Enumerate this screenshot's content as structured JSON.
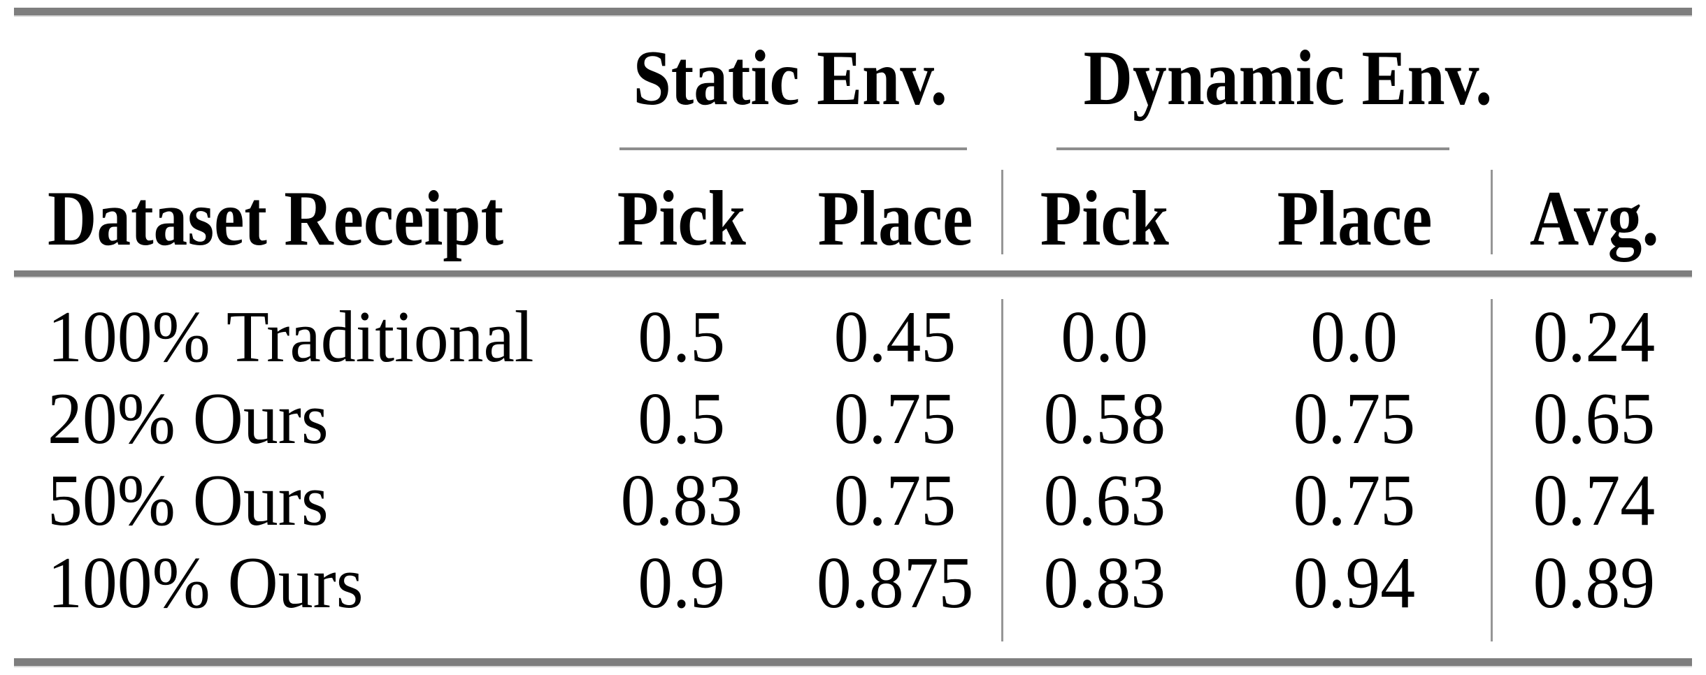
{
  "table": {
    "col_groups": [
      {
        "label": "Static Env."
      },
      {
        "label": "Dynamic Env."
      }
    ],
    "headers": {
      "dataset": "Dataset Receipt",
      "static_pick": "Pick",
      "static_place": "Place",
      "dynamic_pick": "Pick",
      "dynamic_place": "Place",
      "avg": "Avg."
    },
    "rows": [
      {
        "label": "100% Traditional",
        "static_pick": "0.5",
        "static_place": "0.45",
        "dynamic_pick": "0.0",
        "dynamic_place": "0.0",
        "avg": "0.24"
      },
      {
        "label": "20% Ours",
        "static_pick": "0.5",
        "static_place": "0.75",
        "dynamic_pick": "0.58",
        "dynamic_place": "0.75",
        "avg": "0.65"
      },
      {
        "label": "50% Ours",
        "static_pick": "0.83",
        "static_place": "0.75",
        "dynamic_pick": "0.63",
        "dynamic_place": "0.75",
        "avg": "0.74"
      },
      {
        "label": "100% Ours",
        "static_pick": "0.9",
        "static_place": "0.875",
        "dynamic_pick": "0.83",
        "dynamic_place": "0.94",
        "avg": "0.89"
      }
    ]
  },
  "colors": {
    "rule_gray": "#7e7e7e",
    "rule_light_edge": "#d7d7d7",
    "separator_gray": "#969696",
    "text": "#000000",
    "background": "#ffffff"
  }
}
